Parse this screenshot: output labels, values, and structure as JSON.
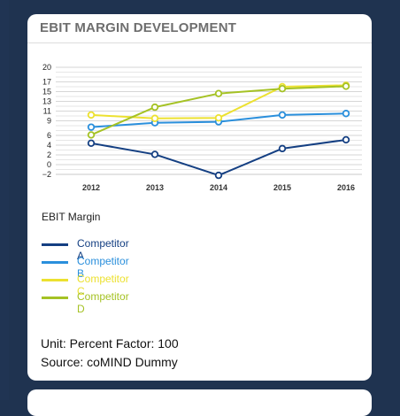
{
  "card": {
    "title": "EBIT MARGIN DEVELOPMENT",
    "footer_unit": "Unit: Percent Factor: 100",
    "footer_source": "Source: coMIND Dummy"
  },
  "chart_data": {
    "type": "line",
    "title": "EBIT MARGIN DEVELOPMENT",
    "subtitle": "EBIT Margin",
    "x": [
      "2012",
      "2013",
      "2014",
      "2015",
      "2016"
    ],
    "yticks": [
      -2,
      0,
      2,
      4,
      6,
      9,
      11,
      13,
      15,
      17,
      20
    ],
    "ylim": [
      -2,
      20
    ],
    "grid": true,
    "legend_position": "bottom-left",
    "series": [
      {
        "name": "Competitor A",
        "color": "#143f82",
        "values": [
          4.4,
          2.1,
          -2.2,
          3.3,
          5.1
        ]
      },
      {
        "name": "Competitor B",
        "color": "#2a8fdc",
        "values": [
          7.7,
          8.6,
          8.8,
          10.2,
          10.5
        ]
      },
      {
        "name": "Competitor C",
        "color": "#ece130",
        "values": [
          10.2,
          9.5,
          9.6,
          16.0,
          16.3
        ]
      },
      {
        "name": "Competitor D",
        "color": "#a5c224",
        "values": [
          6.1,
          11.8,
          14.6,
          15.6,
          16.1
        ]
      }
    ]
  }
}
